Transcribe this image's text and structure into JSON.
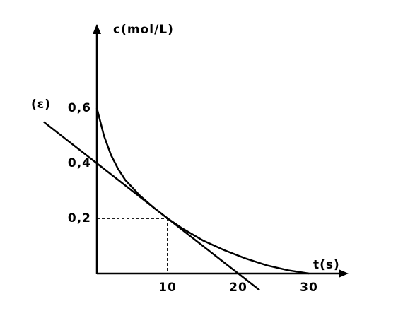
{
  "chart_data": {
    "type": "line",
    "y_label": "c(mol/L)",
    "x_label": "t(s)",
    "annotation": "(ε)",
    "xlim": [
      0,
      35
    ],
    "ylim": [
      0,
      0.89
    ],
    "xticks": [
      10,
      20,
      30
    ],
    "yticks": [
      {
        "value": 0.2,
        "label": "0,2"
      },
      {
        "value": 0.4,
        "label": "0,4"
      },
      {
        "value": 0.6,
        "label": "0,6"
      }
    ],
    "color": "#000000",
    "series": [
      {
        "x": [
          0,
          1,
          2,
          3,
          4,
          6,
          8,
          10,
          12,
          15,
          18,
          21,
          24,
          27,
          30
        ],
        "values": [
          0.6,
          0.5,
          0.43,
          0.38,
          0.34,
          0.285,
          0.24,
          0.2,
          0.165,
          0.12,
          0.085,
          0.055,
          0.03,
          0.012,
          0
        ]
      },
      {
        "x": [
          -7.5,
          23
        ],
        "values": [
          0.55,
          -0.06
        ]
      }
    ],
    "guides": [
      {
        "x": 10,
        "y": 0.2
      }
    ]
  }
}
